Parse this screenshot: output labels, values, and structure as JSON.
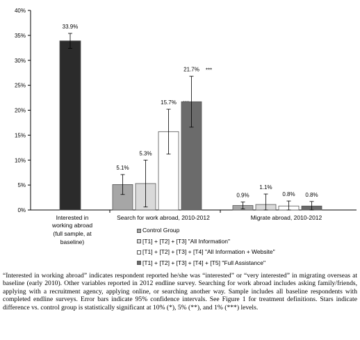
{
  "chart_data": {
    "type": "bar",
    "ylim": [
      0,
      40
    ],
    "yticks": [
      "0%",
      "5%",
      "10%",
      "15%",
      "20%",
      "25%",
      "30%",
      "35%",
      "40%"
    ],
    "grid": false,
    "legend_position": "bottom",
    "groups": [
      {
        "label": "Interested in working abroad (full sample, at baseline)",
        "label_lines": [
          "Interested in",
          "working abroad",
          "(full sample, at",
          "baseline)"
        ],
        "bars": [
          {
            "series": "full-sample",
            "value": 33.9,
            "ci": [
              32.4,
              35.4
            ],
            "data_label": "33.9%",
            "stars": ""
          }
        ]
      },
      {
        "label": "Search for work abroad, 2010-2012",
        "label_lines": [
          "Search for work abroad, 2010-2012"
        ],
        "bars": [
          {
            "series": "control",
            "value": 5.1,
            "ci": [
              3.1,
              7.1
            ],
            "data_label": "5.1%",
            "stars": ""
          },
          {
            "series": "t123",
            "value": 5.3,
            "ci": [
              0.6,
              10.0
            ],
            "data_label": "5.3%",
            "stars": ""
          },
          {
            "series": "t1234",
            "value": 15.7,
            "ci": [
              11.2,
              20.2
            ],
            "data_label": "15.7%",
            "stars": "***"
          },
          {
            "series": "t12345",
            "value": 21.7,
            "ci": [
              16.6,
              26.8
            ],
            "data_label": "21.7%",
            "stars": "***"
          }
        ]
      },
      {
        "label": "Migrate abroad, 2010-2012",
        "label_lines": [
          "Migrate abroad, 2010-2012"
        ],
        "bars": [
          {
            "series": "control",
            "value": 0.9,
            "ci": [
              0.2,
              1.6
            ],
            "data_label": "0.9%",
            "stars": ""
          },
          {
            "series": "t123",
            "value": 1.1,
            "ci": [
              0.0,
              3.2
            ],
            "data_label": "1.1%",
            "stars": ""
          },
          {
            "series": "t1234",
            "value": 0.8,
            "ci": [
              0.0,
              1.8
            ],
            "data_label": "0.8%",
            "stars": ""
          },
          {
            "series": "t12345",
            "value": 0.8,
            "ci": [
              0.0,
              1.7
            ],
            "data_label": "0.8%",
            "stars": ""
          }
        ]
      }
    ],
    "series": [
      {
        "id": "full-sample",
        "name": "",
        "color": "#2b2b2b"
      },
      {
        "id": "control",
        "name": "Control Group",
        "color": "#a6a6a6"
      },
      {
        "id": "t123",
        "name": "[T1] + [T2] + [T3] \"All Information\"",
        "color": "#d9d9d9"
      },
      {
        "id": "t1234",
        "name": "[T1] + [T2] + [T3] + [T4] \"All Information + Website\"",
        "color": "#ffffff"
      },
      {
        "id": "t12345",
        "name": "[T1] + [T2] + [T3] + [T4] + [T5] \"Full Assistance\"",
        "color": "#6b6b6b"
      }
    ]
  },
  "legend": [
    {
      "name": "Control Group",
      "color": "#a6a6a6"
    },
    {
      "name": "[T1] + [T2] + [T3] \"All Information\"",
      "color": "#d9d9d9"
    },
    {
      "name": "[T1] + [T2] + [T3] + [T4] \"All Information + Website\"",
      "color": "#ffffff"
    },
    {
      "name": "[T1] + [T2] + [T3] + [T4] + [T5] \"Full Assistance\"",
      "color": "#6b6b6b"
    }
  ],
  "note": "“Interested in working abroad” indicates respondent reported he/she was “interested” or “very interested” in migrating overseas at baseline (early 2010). Other variables reported in 2012 endline survey. Searching for work abroad includes asking family/friends, applying with a recruitment agency, applying online, or searching another way. Sample includes all baseline respondents with completed endline surveys. Error bars indicate 95% confidence intervals. See Figure 1 for treatment definitions. Stars indicate difference vs. control group is statistically significant at 10% (*), 5% (**), and 1% (***) levels."
}
